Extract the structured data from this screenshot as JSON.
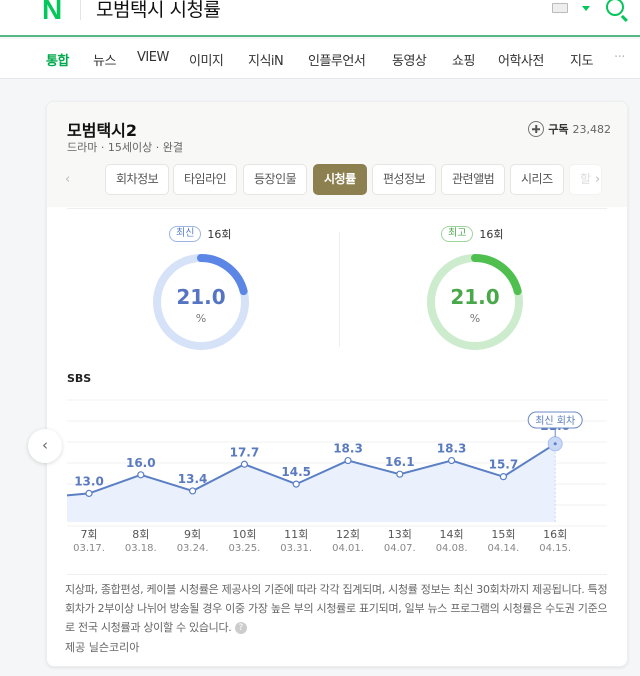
{
  "header": {
    "logo": "N",
    "query": "모범택시 시청률"
  },
  "nav": {
    "items": [
      {
        "label": "통합",
        "active": true
      },
      {
        "label": "뉴스"
      },
      {
        "label": "VIEW"
      },
      {
        "label": "이미지"
      },
      {
        "label": "지식iN"
      },
      {
        "label": "인플루언서"
      },
      {
        "label": "동영상"
      },
      {
        "label": "쇼핑"
      },
      {
        "label": "어학사전"
      },
      {
        "label": "지도"
      },
      {
        "label": "···"
      }
    ]
  },
  "card": {
    "title": "모범택시2",
    "subinfo": "드라마 · 15세이상 · 완결",
    "subscribe": {
      "label": "구독",
      "count": "23,482"
    },
    "tabs": [
      {
        "label": "회차정보"
      },
      {
        "label": "타임라인"
      },
      {
        "label": "등장인물"
      },
      {
        "label": "시청률",
        "active": true
      },
      {
        "label": "편성정보"
      },
      {
        "label": "관련앨범"
      },
      {
        "label": "시리즈"
      },
      {
        "label": "할"
      }
    ],
    "tab_prev": "‹",
    "tab_next": "›",
    "latest": {
      "badge": "최신",
      "episode": "16회",
      "value": "21.0",
      "unit": "%",
      "color": "#5b86e5",
      "track": "#d6e2f8"
    },
    "highest": {
      "badge": "최고",
      "episode": "16회",
      "value": "21.0",
      "unit": "%",
      "color": "#4fbf4f",
      "track": "#cdeccd"
    },
    "network": "SBS",
    "latest_episode_tag": "최신 회차",
    "prev_button": "‹",
    "notice": "지상파, 종합편성, 케이블 시청률은 제공사의 기준에 따라 각각 집계되며, 시청률 정보는 최신 30회차까지 제공됩니다. 특정 회차가 2부이상 나뉘어 방송될 경우 이중 가장 높은 부의 시청률로 표기되며, 일부 뉴스 프로그램의 시청률은 수도권 기준으로 전국 시청률과 상이할 수 있습니다.",
    "help": "?",
    "provider": "제공 닐슨코리아"
  },
  "chart_data": {
    "type": "line",
    "title": "SBS",
    "categories": [
      "7회",
      "8회",
      "9회",
      "10회",
      "11회",
      "12회",
      "13회",
      "14회",
      "15회",
      "16회"
    ],
    "dates": [
      "03.17.",
      "03.18.",
      "03.24.",
      "03.25.",
      "03.31.",
      "04.01.",
      "04.07.",
      "04.08.",
      "04.14.",
      "04.15."
    ],
    "values": [
      13.0,
      16.0,
      13.4,
      17.7,
      14.5,
      18.3,
      16.1,
      18.3,
      15.7,
      21.0
    ],
    "labels": [
      "13.0",
      "16.0",
      "13.4",
      "17.7",
      "14.5",
      "18.3",
      "16.1",
      "18.3",
      "15.7",
      "21.0"
    ],
    "xlabel": "",
    "ylabel": "",
    "grid": true,
    "area_fill": true,
    "highlight_index": 9,
    "line_color": "#5b7fc4"
  }
}
